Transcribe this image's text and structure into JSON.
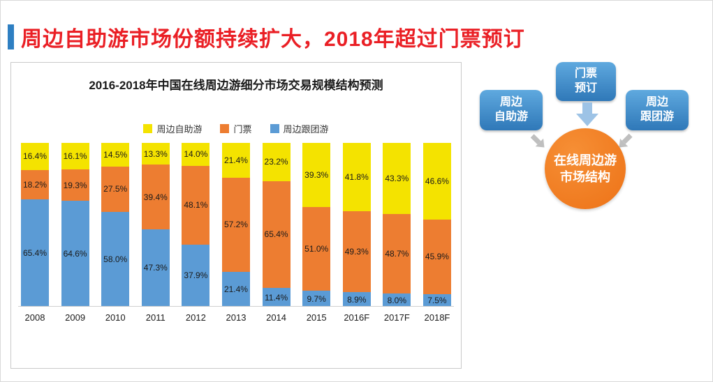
{
  "header": {
    "title": "周边自助游市场份额持续扩大，2018年超过门票预订"
  },
  "colors": {
    "title_red": "#ea1f25",
    "accent_blue": "#2e7fc2",
    "series_yellow": "#f4e300",
    "series_orange": "#ed7d31",
    "series_blue": "#5b9bd5",
    "box_blue": "#3f8fcd",
    "circle_orange": "#ed7d1e",
    "arrow_light_blue": "#9dc3e6",
    "connector_gray": "#bfbfbf"
  },
  "chart_data": {
    "type": "bar",
    "stacked": true,
    "percent": true,
    "title": "2016-2018年中国在线周边游细分市场交易规模结构预测",
    "categories": [
      "2008",
      "2009",
      "2010",
      "2011",
      "2012",
      "2013",
      "2014",
      "2015",
      "2016F",
      "2017F",
      "2018F"
    ],
    "series": [
      {
        "name": "周边自助游",
        "color_key": "series_yellow",
        "values": [
          "16.4",
          "16.1",
          "14.5",
          "13.3",
          "14.0",
          "21.4",
          "23.2",
          "39.3",
          "41.8",
          "43.3",
          "46.6"
        ]
      },
      {
        "name": "门票",
        "color_key": "series_orange",
        "values": [
          "18.2",
          "19.3",
          "27.5",
          "39.4",
          "48.1",
          "57.2",
          "65.4",
          "51.0",
          "49.3",
          "48.7",
          "45.9"
        ]
      },
      {
        "name": "周边跟团游",
        "color_key": "series_blue",
        "values": [
          "65.4",
          "64.6",
          "58.0",
          "47.3",
          "37.9",
          "21.4",
          "11.4",
          "9.7",
          "8.9",
          "8.0",
          "7.5"
        ]
      }
    ],
    "ylim": [
      0,
      100
    ],
    "legend_position": "top",
    "value_suffix": "%"
  },
  "diagram": {
    "top_box": "门票\n预订",
    "left_box": "周边\n自助游",
    "right_box": "周边\n跟团游",
    "circle": "在线周边游\n市场结构"
  }
}
